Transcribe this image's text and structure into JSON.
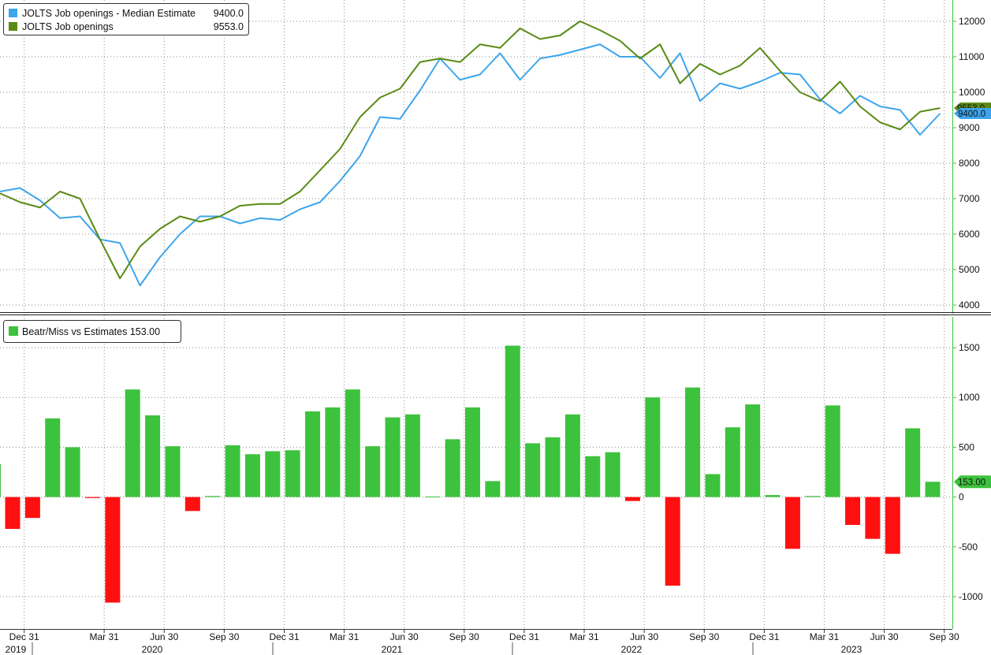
{
  "chart_data": [
    {
      "type": "line",
      "legend": [
        {
          "name": "JOLTS Job openings - Median Estimate",
          "last": "9400.0",
          "color": "#3da5ec"
        },
        {
          "name": "JOLTS Job openings",
          "last": "9553.0",
          "color": "#5a8a14"
        }
      ],
      "y_ticks": [
        "4000",
        "5000",
        "6000",
        "7000",
        "8000",
        "9000",
        "10000",
        "11000",
        "12000"
      ],
      "ylim": [
        3800,
        12600
      ],
      "last_labels": {
        "estimate": "9400.0",
        "actual": "9553.0"
      },
      "series": [
        {
          "name": "JOLTS Job openings - Median Estimate",
          "color": "#3da5ec",
          "values": [
            7200,
            7300,
            6950,
            6450,
            6500,
            5850,
            5750,
            4550,
            5350,
            6000,
            6500,
            6500,
            6300,
            6450,
            6400,
            6700,
            6900,
            7500,
            8200,
            9300,
            9250,
            10050,
            10950,
            10350,
            10500,
            11100,
            10350,
            10950,
            11050,
            11200,
            11350,
            11000,
            11000,
            10400,
            11100,
            9750,
            10250,
            10100,
            10300,
            10550,
            10500,
            9800,
            9400,
            9900,
            9600,
            9500,
            8800,
            9400
          ]
        },
        {
          "name": "JOLTS Job openings",
          "color": "#5a8a14",
          "values": [
            7150,
            6900,
            6750,
            7200,
            7000,
            5850,
            4750,
            5650,
            6150,
            6500,
            6350,
            6500,
            6800,
            6850,
            6850,
            7200,
            7800,
            8400,
            9300,
            9850,
            10100,
            10850,
            10950,
            10850,
            11350,
            11250,
            11800,
            11500,
            11600,
            12000,
            11750,
            11450,
            10950,
            11350,
            10250,
            10800,
            10500,
            10750,
            11250,
            10600,
            10000,
            9750,
            10300,
            9600,
            9150,
            8950,
            9450,
            9553
          ]
        }
      ]
    },
    {
      "type": "bar",
      "legend": [
        {
          "name": "Beatr/Miss vs Estimates 153.00",
          "color": "#3dc23d"
        }
      ],
      "y_ticks": [
        "-1000",
        "-500",
        "0",
        "500",
        "1000",
        "1500"
      ],
      "ylim": [
        -1325,
        1825
      ],
      "last_label": "153.00",
      "positive_color": "#3dc23d",
      "negative_color": "#ff1010",
      "series": [
        {
          "name": "Beatr/Miss vs Estimates",
          "values": [
            -320,
            -210,
            790,
            500,
            -10,
            -1060,
            1080,
            820,
            510,
            -140,
            10,
            520,
            430,
            460,
            470,
            860,
            900,
            1080,
            510,
            800,
            830,
            5,
            580,
            900,
            160,
            1520,
            540,
            600,
            830,
            410,
            450,
            -40,
            1000,
            -890,
            1100,
            230,
            700,
            930,
            20,
            -520,
            10,
            920,
            -280,
            -420,
            -570,
            690,
            153
          ]
        }
      ]
    }
  ],
  "x_axis": {
    "tick_labels": [
      "Dec 31",
      "Mar 31",
      "Jun 30",
      "Sep 30",
      "Dec 31",
      "Mar 31",
      "Jun 30",
      "Sep 30",
      "Dec 31",
      "Mar 31",
      "Jun 30",
      "Sep 30",
      "Dec 31",
      "Mar 31",
      "Jun 30",
      "Sep 30"
    ],
    "years": [
      "2019",
      "2020",
      "2021",
      "2022",
      "2023"
    ]
  }
}
